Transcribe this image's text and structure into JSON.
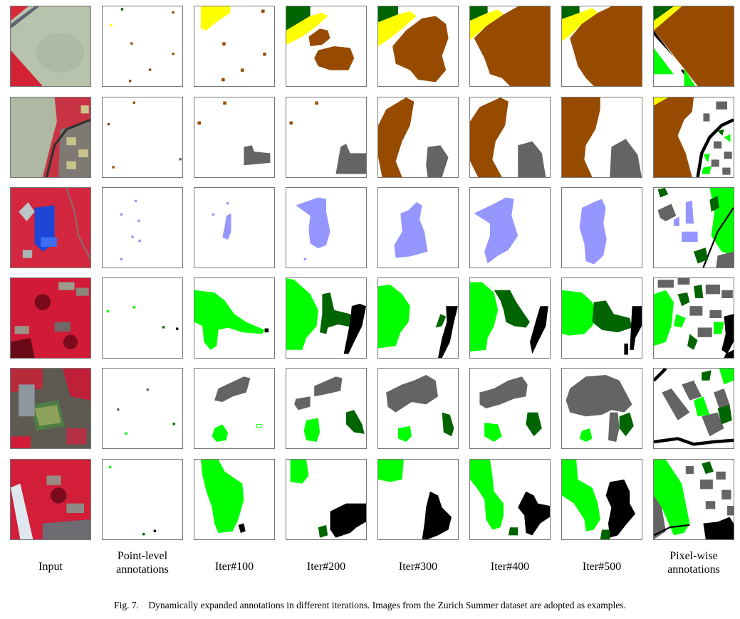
{
  "figure": {
    "columns": [
      {
        "label": "Input"
      },
      {
        "label": "Point-level\nannotations"
      },
      {
        "label": "Iter#100"
      },
      {
        "label": "Iter#200"
      },
      {
        "label": "Iter#300"
      },
      {
        "label": "Iter#400"
      },
      {
        "label": "Iter#500"
      },
      {
        "label": "Pixel-wise\nannotations"
      }
    ],
    "rows": 6,
    "class_colors": {
      "bare_soil": "#964B00",
      "road": "#000000",
      "building": "#646464",
      "grass": "#00FF00",
      "tree": "#006400",
      "water": "#9696FF",
      "railway": "#FFFF00",
      "background": "#FFFFFF"
    },
    "caption": {
      "label": "Fig. 7.",
      "text": "Dynamically expanded annotations in different iterations. Images from the Zurich Summer dataset are adopted as examples."
    }
  }
}
